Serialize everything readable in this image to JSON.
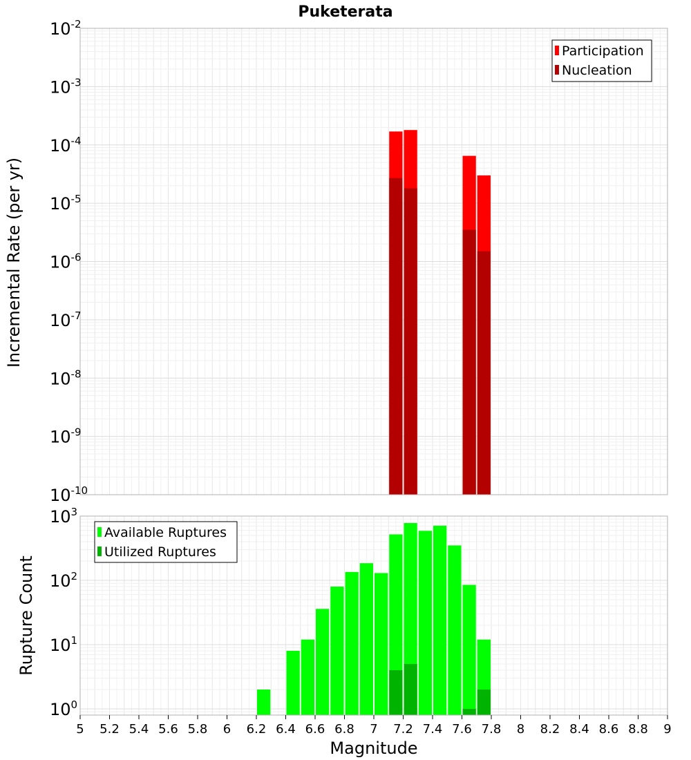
{
  "chart_data": [
    {
      "type": "bar",
      "title": "Puketerata",
      "xlabel": "",
      "ylabel": "Incremental Rate (per yr)",
      "yscale": "log",
      "ylim": [
        1e-10,
        0.01
      ],
      "xlim": [
        5,
        9
      ],
      "grid": true,
      "legend_position": "top-right",
      "yticks": [
        {
          "base": "10",
          "exp": "-10",
          "value": 1e-10
        },
        {
          "base": "10",
          "exp": "-9",
          "value": 1e-09
        },
        {
          "base": "10",
          "exp": "-8",
          "value": 1e-08
        },
        {
          "base": "10",
          "exp": "-7",
          "value": 1e-07
        },
        {
          "base": "10",
          "exp": "-6",
          "value": 1e-06
        },
        {
          "base": "10",
          "exp": "-5",
          "value": 1e-05
        },
        {
          "base": "10",
          "exp": "-4",
          "value": 0.0001
        },
        {
          "base": "10",
          "exp": "-3",
          "value": 0.001
        },
        {
          "base": "10",
          "exp": "-2",
          "value": 0.01
        }
      ],
      "series": [
        {
          "name": "Participation",
          "color": "#ff0000",
          "points": [
            {
              "x": 7.15,
              "y": 0.00017
            },
            {
              "x": 7.25,
              "y": 0.00018
            },
            {
              "x": 7.65,
              "y": 6.5e-05
            },
            {
              "x": 7.75,
              "y": 3e-05
            }
          ]
        },
        {
          "name": "Nucleation",
          "color": "#b30000",
          "points": [
            {
              "x": 7.15,
              "y": 2.7e-05
            },
            {
              "x": 7.25,
              "y": 1.8e-05
            },
            {
              "x": 7.65,
              "y": 3.5e-06
            },
            {
              "x": 7.75,
              "y": 1.5e-06
            }
          ]
        }
      ]
    },
    {
      "type": "bar",
      "title": "",
      "xlabel": "Magnitude",
      "ylabel": "Rupture Count",
      "yscale": "log",
      "ylim": [
        0.8,
        1000
      ],
      "xlim": [
        5,
        9
      ],
      "grid": true,
      "legend_position": "top-left",
      "xticks": [
        "5",
        "5.2",
        "5.4",
        "5.6",
        "5.8",
        "6",
        "6.2",
        "6.4",
        "6.6",
        "6.8",
        "7",
        "7.2",
        "7.4",
        "7.6",
        "7.8",
        "8",
        "8.2",
        "8.4",
        "8.6",
        "8.8",
        "9"
      ],
      "yticks": [
        {
          "base": "10",
          "exp": "0",
          "value": 1
        },
        {
          "base": "10",
          "exp": "1",
          "value": 10
        },
        {
          "base": "10",
          "exp": "2",
          "value": 100
        },
        {
          "base": "10",
          "exp": "3",
          "value": 1000
        }
      ],
      "series": [
        {
          "name": "Available Ruptures",
          "color": "#00ff00",
          "points": [
            {
              "x": 6.25,
              "y": 2
            },
            {
              "x": 6.45,
              "y": 8
            },
            {
              "x": 6.55,
              "y": 12
            },
            {
              "x": 6.65,
              "y": 36
            },
            {
              "x": 6.75,
              "y": 80
            },
            {
              "x": 6.85,
              "y": 135
            },
            {
              "x": 6.95,
              "y": 185
            },
            {
              "x": 7.05,
              "y": 130
            },
            {
              "x": 7.15,
              "y": 520
            },
            {
              "x": 7.25,
              "y": 780
            },
            {
              "x": 7.35,
              "y": 590
            },
            {
              "x": 7.45,
              "y": 710
            },
            {
              "x": 7.55,
              "y": 350
            },
            {
              "x": 7.65,
              "y": 85
            },
            {
              "x": 7.75,
              "y": 12
            }
          ]
        },
        {
          "name": "Utilized Ruptures",
          "color": "#00b300",
          "points": [
            {
              "x": 7.15,
              "y": 4
            },
            {
              "x": 7.25,
              "y": 5
            },
            {
              "x": 7.65,
              "y": 1
            },
            {
              "x": 7.75,
              "y": 2
            }
          ]
        }
      ]
    }
  ]
}
